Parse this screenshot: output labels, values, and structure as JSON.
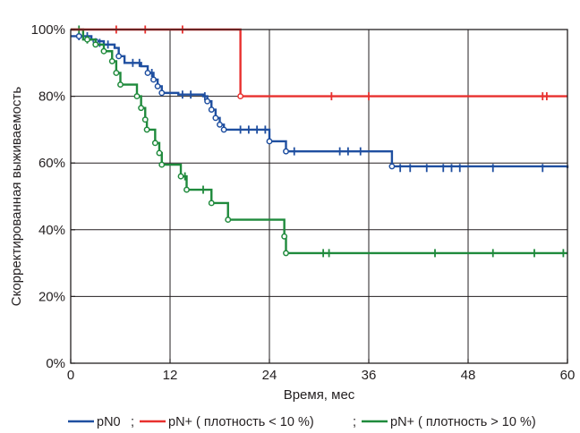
{
  "chart_data": {
    "type": "line",
    "subtype": "kaplan-meier-step",
    "xlabel": "Время, мес",
    "ylabel": "Скорректированная выживаемость",
    "xlim": [
      0,
      60
    ],
    "ylim": [
      0,
      100
    ],
    "x_ticks": [
      0,
      12,
      24,
      36,
      48,
      60
    ],
    "x_tick_labels": [
      "0",
      "12",
      "24",
      "36",
      "48",
      "60"
    ],
    "y_ticks": [
      0,
      20,
      40,
      60,
      80,
      100
    ],
    "y_tick_labels": [
      "0%",
      "20%",
      "40%",
      "60%",
      "80%",
      "100%"
    ],
    "grid": true,
    "legend_position": "bottom",
    "legend_text": {
      "sep1": ";",
      "sep2": ";"
    },
    "series": [
      {
        "name": "pN0",
        "color": "#1f4fa0",
        "steps": [
          [
            0,
            98
          ],
          [
            2.5,
            97
          ],
          [
            3,
            96.5
          ],
          [
            4,
            95.5
          ],
          [
            5.3,
            94.5
          ],
          [
            5.8,
            92
          ],
          [
            6.5,
            90
          ],
          [
            8.5,
            89
          ],
          [
            9.3,
            87
          ],
          [
            10,
            85
          ],
          [
            10.5,
            83
          ],
          [
            11,
            81
          ],
          [
            13,
            80.5
          ],
          [
            16,
            80
          ],
          [
            16.5,
            78.5
          ],
          [
            17,
            76
          ],
          [
            17.5,
            73.5
          ],
          [
            18,
            71.5
          ],
          [
            18.5,
            70
          ],
          [
            24,
            66.5
          ],
          [
            26,
            63.5
          ],
          [
            38.8,
            59
          ],
          [
            60,
            58.5
          ]
        ],
        "censored": [
          [
            1,
            98
          ],
          [
            2,
            98
          ],
          [
            3.5,
            96
          ],
          [
            4.5,
            95.5
          ],
          [
            7.5,
            90
          ],
          [
            8.3,
            90
          ],
          [
            9.8,
            87
          ],
          [
            13.5,
            80.5
          ],
          [
            14.5,
            80.5
          ],
          [
            16.2,
            80
          ],
          [
            20.5,
            70
          ],
          [
            21.5,
            70
          ],
          [
            22.5,
            70
          ],
          [
            23.5,
            70
          ],
          [
            27,
            63.5
          ],
          [
            32.5,
            63.5
          ],
          [
            33.5,
            63.5
          ],
          [
            35,
            63.5
          ],
          [
            39.8,
            58.5
          ],
          [
            41,
            58.5
          ],
          [
            43,
            58.5
          ],
          [
            45,
            58.5
          ],
          [
            46,
            58.5
          ],
          [
            47,
            58.5
          ],
          [
            51,
            58.5
          ],
          [
            57,
            58.5
          ]
        ],
        "events": [
          [
            1,
            98
          ],
          [
            3,
            96.5
          ],
          [
            5.8,
            92
          ],
          [
            9.3,
            87
          ],
          [
            10,
            85
          ],
          [
            10.5,
            83
          ],
          [
            11,
            81
          ],
          [
            16.5,
            78.5
          ],
          [
            17,
            76
          ],
          [
            17.5,
            73.5
          ],
          [
            18,
            71.5
          ],
          [
            18.5,
            70
          ],
          [
            24,
            66.5
          ],
          [
            26,
            63.5
          ],
          [
            38.8,
            59
          ]
        ]
      },
      {
        "name": "pN+ ( плотность < 10 %)",
        "color": "#e8302e",
        "steps": [
          [
            0,
            100
          ],
          [
            20.5,
            80
          ],
          [
            60,
            80
          ]
        ],
        "censored": [
          [
            5.5,
            100
          ],
          [
            9,
            100
          ],
          [
            13.5,
            100
          ],
          [
            31.5,
            80
          ],
          [
            36,
            80
          ],
          [
            57,
            80
          ],
          [
            57.5,
            80
          ]
        ],
        "events": [
          [
            20.5,
            80
          ]
        ]
      },
      {
        "name": "pN+ ( плотность > 10 %)",
        "color": "#1f8a3c",
        "steps": [
          [
            0,
            100
          ],
          [
            1.5,
            97
          ],
          [
            3,
            95.5
          ],
          [
            4,
            93.5
          ],
          [
            5,
            90.5
          ],
          [
            5.5,
            87
          ],
          [
            6,
            83.5
          ],
          [
            8,
            80
          ],
          [
            8.5,
            76.5
          ],
          [
            9,
            73
          ],
          [
            9.2,
            70
          ],
          [
            10.2,
            66
          ],
          [
            10.7,
            63
          ],
          [
            11,
            59.5
          ],
          [
            13.3,
            56
          ],
          [
            14,
            52
          ],
          [
            17,
            48
          ],
          [
            19,
            43
          ],
          [
            25.8,
            38
          ],
          [
            26,
            33
          ],
          [
            60,
            33
          ]
        ],
        "censored": [
          [
            1,
            100
          ],
          [
            2,
            97
          ],
          [
            13.8,
            56
          ],
          [
            16,
            52
          ],
          [
            30.5,
            33
          ],
          [
            31.2,
            33
          ],
          [
            44,
            33
          ],
          [
            51,
            33
          ],
          [
            56,
            33
          ],
          [
            59.5,
            33
          ]
        ],
        "events": [
          [
            2,
            97
          ],
          [
            3,
            95.5
          ],
          [
            4,
            93.5
          ],
          [
            5,
            90.5
          ],
          [
            5.5,
            87
          ],
          [
            6,
            83.5
          ],
          [
            8,
            80
          ],
          [
            8.5,
            76.5
          ],
          [
            9,
            73
          ],
          [
            9.2,
            70
          ],
          [
            10.2,
            66
          ],
          [
            10.7,
            63
          ],
          [
            11,
            59.5
          ],
          [
            13.3,
            56
          ],
          [
            14,
            52
          ],
          [
            17,
            48
          ],
          [
            19,
            43
          ],
          [
            25.8,
            38
          ],
          [
            26,
            33
          ]
        ]
      }
    ]
  }
}
